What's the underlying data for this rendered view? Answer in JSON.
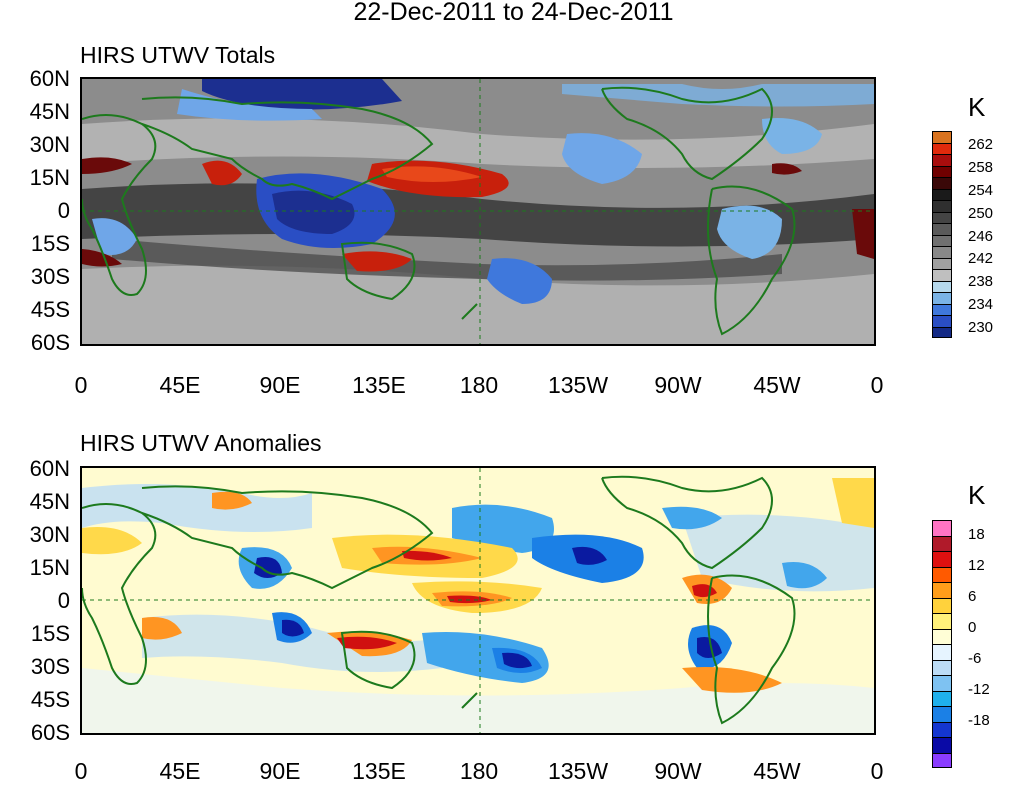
{
  "title": "22-Dec-2011 to 24-Dec-2011",
  "panels": [
    {
      "title": "HIRS UTWV Totals",
      "unit": "K",
      "colorbar_labels": [
        "262",
        "258",
        "254",
        "250",
        "246",
        "242",
        "238",
        "234",
        "230"
      ],
      "colorbar_colors": [
        "#d9731f",
        "#e02a0c",
        "#a80d0d",
        "#700000",
        "#3a0808",
        "#1a1a1a",
        "#2f2f2f",
        "#444444",
        "#5a5a5a",
        "#707070",
        "#888888",
        "#a0a0a0",
        "#bfbfbf",
        "#b6d8ec",
        "#7ab3e6",
        "#3f78dc",
        "#2a4ec4",
        "#142a86"
      ],
      "region_colors": {
        "base": "#8c8c8c",
        "dark": "#3c3c3c",
        "light": "#bcbcbc",
        "blue": "#6fa6e8",
        "deepblue": "#1c2f90",
        "red": "#c8200c",
        "darkred": "#6a0a0a"
      }
    },
    {
      "title": "HIRS UTWV Anomalies",
      "unit": "K",
      "colorbar_labels": [
        "18",
        "12",
        "6",
        "0",
        "-6",
        "-12",
        "-18"
      ],
      "colorbar_colors": [
        "#ff74c4",
        "#b01a2a",
        "#de1010",
        "#ff5a00",
        "#ff9d1a",
        "#ffd23c",
        "#fff17a",
        "#fffed6",
        "#e6f4ff",
        "#bcdcf6",
        "#7ec2f2",
        "#1fb0ec",
        "#1b80e6",
        "#1436d0",
        "#0a0aa6",
        "#8a3cff"
      ],
      "region_colors": {
        "base": "#fffbd0",
        "lightblue": "#bcdcf6",
        "blue": "#42a6ec",
        "deepblue": "#0a1aa0",
        "yellow": "#ffd94a",
        "orange": "#ff9522",
        "red": "#d01010"
      }
    }
  ],
  "lat_labels": [
    "60N",
    "45N",
    "30N",
    "15N",
    "0",
    "15S",
    "30S",
    "45S",
    "60S"
  ],
  "lon_labels": [
    "0",
    "45E",
    "90E",
    "135E",
    "180",
    "135W",
    "90W",
    "45W",
    "0"
  ]
}
